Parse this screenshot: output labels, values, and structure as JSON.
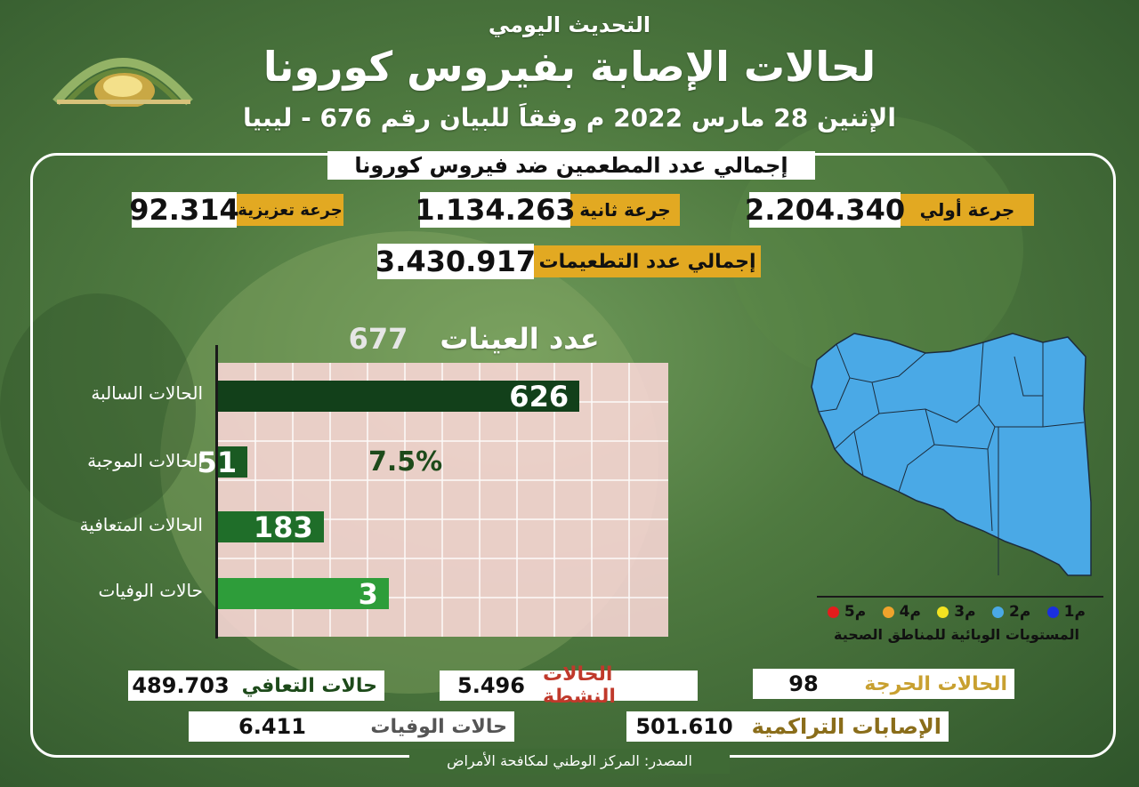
{
  "header": {
    "subtitle": "التحديث اليومي",
    "title": "لحالات الإصابة بفيروس كورونا",
    "date_line": "الإثنين 28 مارس 2022 م وفقاَ للبيان رقم 676 - ليبيا"
  },
  "vaccination": {
    "heading": "إجمالي عدد المطعمين ضد فيروس كورونا",
    "first_dose_label": "جرعة أولي",
    "first_dose_value": "2.204.340",
    "second_dose_label": "جرعة ثانية",
    "second_dose_value": "1.134.263",
    "booster_label": "جرعة تعزيزية",
    "booster_value": "92.314",
    "total_label": "إجمالي عدد التطعيمات",
    "total_value": "3.430.917"
  },
  "samples": {
    "label": "عدد العينات",
    "value": "677",
    "positive_rate": "7.5%"
  },
  "chart_data": {
    "type": "bar",
    "orientation": "horizontal",
    "categories": [
      "الحالات السالبة",
      "الحالات الموجبة",
      "الحالات المتعافية",
      "حالات الوفيات"
    ],
    "values": [
      626,
      51,
      183,
      3
    ],
    "value_labels": [
      "626",
      "51",
      "183",
      "3"
    ],
    "colors": [
      "#12401a",
      "#1a5a22",
      "#1f6e29",
      "#2e9d3a"
    ],
    "xlim": [
      0,
      780
    ],
    "grid": true
  },
  "map": {
    "legend_items": [
      "م1",
      "م2",
      "م3",
      "م4",
      "م5"
    ],
    "legend_colors": [
      "#1a2fe0",
      "#4aa9e6",
      "#f2e321",
      "#f0a32c",
      "#e41c1c"
    ],
    "legend_caption": "المستويات الوبائية للمناطق الصحية",
    "fill_color": "#4aa9e6"
  },
  "totals": {
    "recovered_label": "حالات التعافي",
    "recovered_value": "489.703",
    "active_label": "الحالات النشطة",
    "active_value": "5.496",
    "critical_label": "الحالات الحرجة",
    "critical_value": "98",
    "deaths_label": "حالات الوفيات",
    "deaths_value": "6.411",
    "cumulative_label": "الإصابات التراكمية",
    "cumulative_value": "501.610"
  },
  "footer": {
    "source": "المصدر: المركز الوطني لمكافحة الأمراض"
  }
}
